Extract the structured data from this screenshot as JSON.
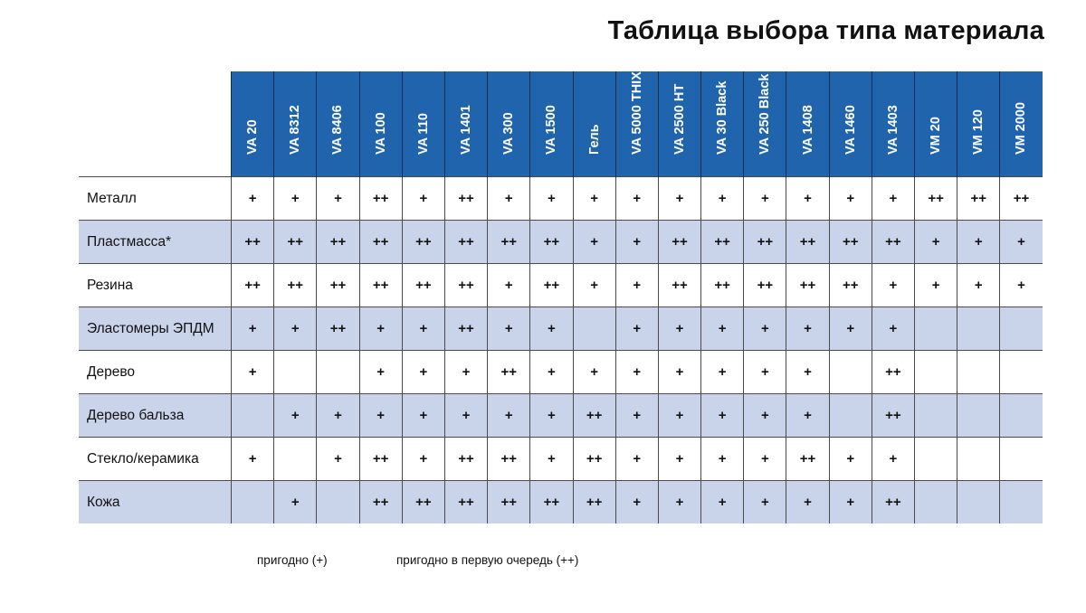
{
  "title": "Таблица выбора типа материала",
  "columns": [
    "VA 20",
    "VA 8312",
    "VA 8406",
    "VA 100",
    "VA 110",
    "VA 1401",
    "VA 300",
    "VA 1500",
    "Гель",
    "VA 5000 THIX",
    "VA 2500 HT",
    "VA 30 Black",
    "VA 250 Black",
    "VA 1408",
    "VA 1460",
    "VA 1403",
    "VM 20",
    "VM 120",
    "VM 2000"
  ],
  "rows": [
    {
      "label": "Металл",
      "shaded": false,
      "cells": [
        "+",
        "+",
        "+",
        "++",
        "+",
        "++",
        "+",
        "+",
        "+",
        "+",
        "+",
        "+",
        "+",
        "+",
        "+",
        "+",
        "++",
        "++",
        "++"
      ]
    },
    {
      "label": "Пластмасса*",
      "shaded": true,
      "cells": [
        "++",
        "++",
        "++",
        "++",
        "++",
        "++",
        "++",
        "++",
        "+",
        "+",
        "++",
        "++",
        "++",
        "++",
        "++",
        "++",
        "+",
        "+",
        "+"
      ]
    },
    {
      "label": "Резина",
      "shaded": false,
      "cells": [
        "++",
        "++",
        "++",
        "++",
        "++",
        "++",
        "+",
        "++",
        "+",
        "+",
        "++",
        "++",
        "++",
        "++",
        "++",
        "+",
        "+",
        "+",
        "+"
      ]
    },
    {
      "label": "Эластомеры ЭПДМ",
      "shaded": true,
      "cells": [
        "+",
        "+",
        "++",
        "+",
        "+",
        "++",
        "+",
        "+",
        "",
        "+",
        "+",
        "+",
        "+",
        "+",
        "+",
        "+",
        "",
        "",
        ""
      ]
    },
    {
      "label": "Дерево",
      "shaded": false,
      "cells": [
        "+",
        "",
        "",
        "+",
        "+",
        "+",
        "++",
        "+",
        "+",
        "+",
        "+",
        "+",
        "+",
        "+",
        "",
        "++",
        "",
        "",
        ""
      ]
    },
    {
      "label": "Дерево бальза",
      "shaded": true,
      "cells": [
        "",
        "+",
        "+",
        "+",
        "+",
        "+",
        "+",
        "+",
        "++",
        "+",
        "+",
        "+",
        "+",
        "+",
        "",
        "++",
        "",
        "",
        ""
      ]
    },
    {
      "label": "Стекло/керамика",
      "shaded": false,
      "cells": [
        "+",
        "",
        "+",
        "++",
        "+",
        "++",
        "++",
        "+",
        "++",
        "+",
        "+",
        "+",
        "+",
        "++",
        "+",
        "+",
        "",
        "",
        ""
      ]
    },
    {
      "label": "Кожа",
      "shaded": true,
      "cells": [
        "",
        "+",
        "",
        "++",
        "++",
        "++",
        "++",
        "++",
        "++",
        "+",
        "+",
        "+",
        "+",
        "+",
        "+",
        "++",
        "",
        "",
        ""
      ]
    }
  ],
  "legend": {
    "suitable": "пригодно (+)",
    "preferred": "пригодно в первую очередь (++)"
  },
  "colors": {
    "header_blue": "#1f64ad",
    "row_shade": "#c9d4ea"
  }
}
